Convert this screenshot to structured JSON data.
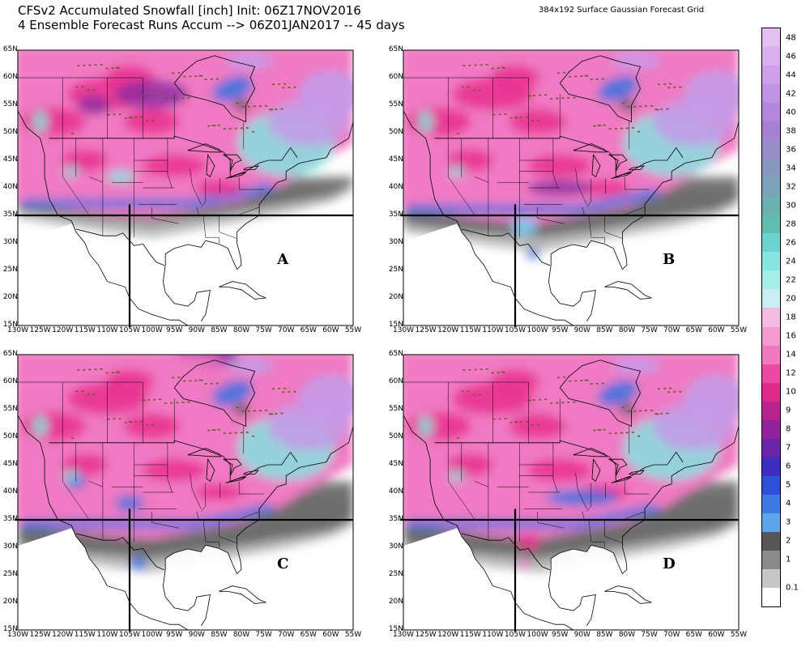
{
  "title_line1": "CFSv2 Accumulated Snowfall [inch] Init: 06Z17NOV2016",
  "title_line2": "4 Ensemble Forecast Runs Accum --> 06Z01JAN2017 -- 45 days",
  "grid_label": "384x192 Surface Gaussian Forecast Grid",
  "lat_ticks": [
    "65N",
    "60N",
    "55N",
    "50N",
    "45N",
    "40N",
    "35N",
    "30N",
    "25N",
    "20N",
    "15N"
  ],
  "lon_ticks": [
    "130W",
    "125W",
    "120W",
    "115W",
    "110W",
    "105W",
    "100W",
    "95W",
    "90W",
    "85W",
    "80W",
    "75W",
    "70W",
    "65W",
    "60W",
    "55W"
  ],
  "panels": [
    {
      "label": "A",
      "crosshair_lat": "35N",
      "crosshair_lon": "105W"
    },
    {
      "label": "B",
      "crosshair_lat": "35N",
      "crosshair_lon": "105W"
    },
    {
      "label": "C",
      "crosshair_lat": "35N",
      "crosshair_lon": "105W"
    },
    {
      "label": "D",
      "crosshair_lat": "35N",
      "crosshair_lon": "105W"
    }
  ],
  "legend": {
    "labels_top_to_bottom": [
      "48",
      "46",
      "44",
      "42",
      "40",
      "38",
      "36",
      "34",
      "32",
      "30",
      "28",
      "26",
      "24",
      "22",
      "20",
      "18",
      "16",
      "14",
      "12",
      "10",
      "9",
      "8",
      "7",
      "6",
      "5",
      "4",
      "3",
      "2",
      "1",
      "0.1"
    ],
    "colors_top_to_bottom": [
      "#e3bff2",
      "#dab0ee",
      "#cea0ea",
      "#c193e4",
      "#b487dc",
      "#a582d2",
      "#968ec8",
      "#8898c0",
      "#7aa3b8",
      "#6db0b0",
      "#62bcae",
      "#6dd3cf",
      "#88e6e0",
      "#a6efe9",
      "#c9eef2",
      "#f4bce0",
      "#f39ad0",
      "#f079c0",
      "#ee4aa3",
      "#e02a8a",
      "#b7238e",
      "#90239c",
      "#6b23a8",
      "#3c2fc0",
      "#2e50d8",
      "#3d7ae6",
      "#5da6ee",
      "#555555",
      "#8a8a8a",
      "#c7c7c7"
    ],
    "bottom_color": "#ffffff"
  },
  "colors": {
    "pink": "#f07ac3",
    "magenta": "#e8308e",
    "purple": "#8b2aa0",
    "blue": "#3a72e0",
    "cyan": "#7ee7e0",
    "lavender": "#c49ae8",
    "gray_dark": "#5a5a5a",
    "gray_light": "#b8b8b8"
  }
}
